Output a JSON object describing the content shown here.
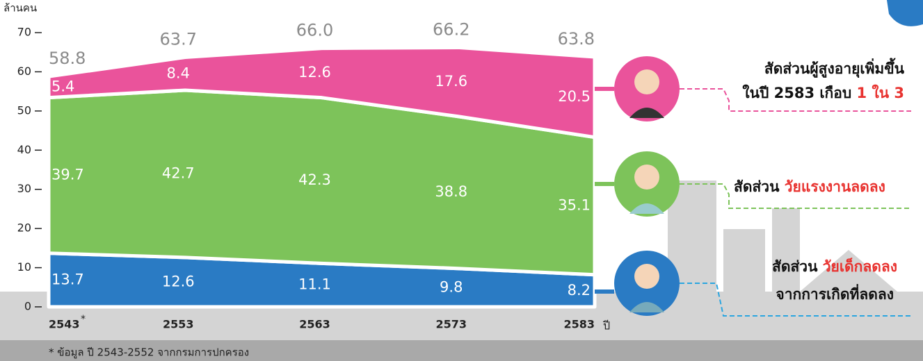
{
  "chart_data": {
    "type": "stacked_area",
    "y_label": "ล้านคน",
    "x_label": "ปี",
    "categories": [
      "2543",
      "2553",
      "2563",
      "2573",
      "2583"
    ],
    "first_category_mark": "*",
    "series": [
      {
        "name": "วัยเด็ก",
        "color": "#2a7bc4",
        "values": [
          13.7,
          12.6,
          11.1,
          9.8,
          8.2
        ]
      },
      {
        "name": "วัยแรงงาน",
        "color": "#7dc35a",
        "values": [
          39.7,
          42.7,
          42.3,
          38.8,
          35.1
        ]
      },
      {
        "name": "ผู้สูงอายุ",
        "color": "#ea539b",
        "values": [
          5.4,
          8.4,
          12.6,
          17.6,
          20.5
        ]
      }
    ],
    "totals": [
      58.8,
      63.7,
      66.0,
      66.2,
      63.8
    ],
    "total_labels": [
      "58.8",
      "63.7",
      "66.0",
      "66.2",
      "63.8"
    ],
    "ylim": [
      0,
      70
    ],
    "yticks": [
      0,
      10,
      20,
      30,
      40,
      50,
      60,
      70
    ],
    "annotations": {
      "elderly": {
        "line1": "สัดส่วนผู้สูงอายุเพิ่มขึ้น",
        "line2": "ในปี 2583 เกือบ",
        "highlight": "1 ใน 3"
      },
      "working": {
        "prefix": "สัดส่วน",
        "highlight": "วัยแรงงานลดลง"
      },
      "children": {
        "prefix": "สัดส่วน",
        "highlight": "วัยเด็กลดลง",
        "line2": "จากการเกิดที่ลดลง"
      }
    },
    "footnote": "* ข้อมูล ปี 2543-2552 จากกรมการปกครอง"
  }
}
